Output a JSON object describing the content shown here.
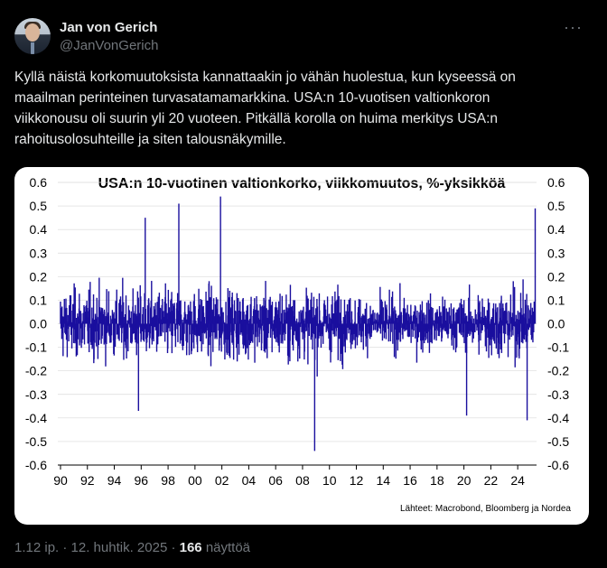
{
  "author": {
    "name": "Jan von Gerich",
    "handle": "@JanVonGerich"
  },
  "menu_icon": "more-dots-icon",
  "tweet_lines": [
    "Kyllä näistä korkomuutoksista kannattaakin jo vähän huolestua, kun kyseessä on",
    "maailman perinteinen turvasatamamarkkina. USA:n 10-vuotisen valtionkoron",
    "viikkonousu oli suurin yli 20 vuoteen. Pitkällä korolla on huima merkitys USA:n",
    "rahoitusolosuhteille ja siten talousnäkymille."
  ],
  "chart_data": {
    "type": "bar",
    "title": "USA:n 10-vuotinen valtionkorko, viikkomuutos, %-yksikköä",
    "source": "Lähteet: Macrobond, Bloomberg ja Nordea",
    "x_tick_labels": [
      "90",
      "92",
      "94",
      "96",
      "98",
      "00",
      "02",
      "04",
      "06",
      "08",
      "10",
      "12",
      "14",
      "16",
      "18",
      "20",
      "22",
      "24"
    ],
    "x_range": [
      1989.8,
      2025.4
    ],
    "ylim": [
      -0.6,
      0.6
    ],
    "y_ticks": [
      -0.6,
      -0.5,
      -0.4,
      -0.3,
      -0.2,
      -0.1,
      0.0,
      0.1,
      0.2,
      0.3,
      0.4,
      0.5,
      0.6
    ],
    "y_tick_labels": [
      "-0.6",
      "-0.5",
      "-0.4",
      "-0.3",
      "-0.2",
      "-0.1",
      "0.0",
      "0.1",
      "0.2",
      "0.3",
      "0.4",
      "0.5",
      "0.6"
    ],
    "grid": true,
    "series_color": "#1a0f9e",
    "notable_points": [
      {
        "x": 1995.8,
        "y": -0.37
      },
      {
        "x": 1996.3,
        "y": 0.45
      },
      {
        "x": 1998.8,
        "y": 0.51
      },
      {
        "x": 2001.9,
        "y": 0.54
      },
      {
        "x": 2008.9,
        "y": -0.54
      },
      {
        "x": 2020.2,
        "y": -0.39
      },
      {
        "x": 2024.7,
        "y": -0.41
      },
      {
        "x": 2025.3,
        "y": 0.49
      }
    ]
  },
  "footer": {
    "time": "1.12 ip. · 12. huhtik. 2025 · ",
    "views_count": "166",
    "views_label": " näyttöä"
  }
}
